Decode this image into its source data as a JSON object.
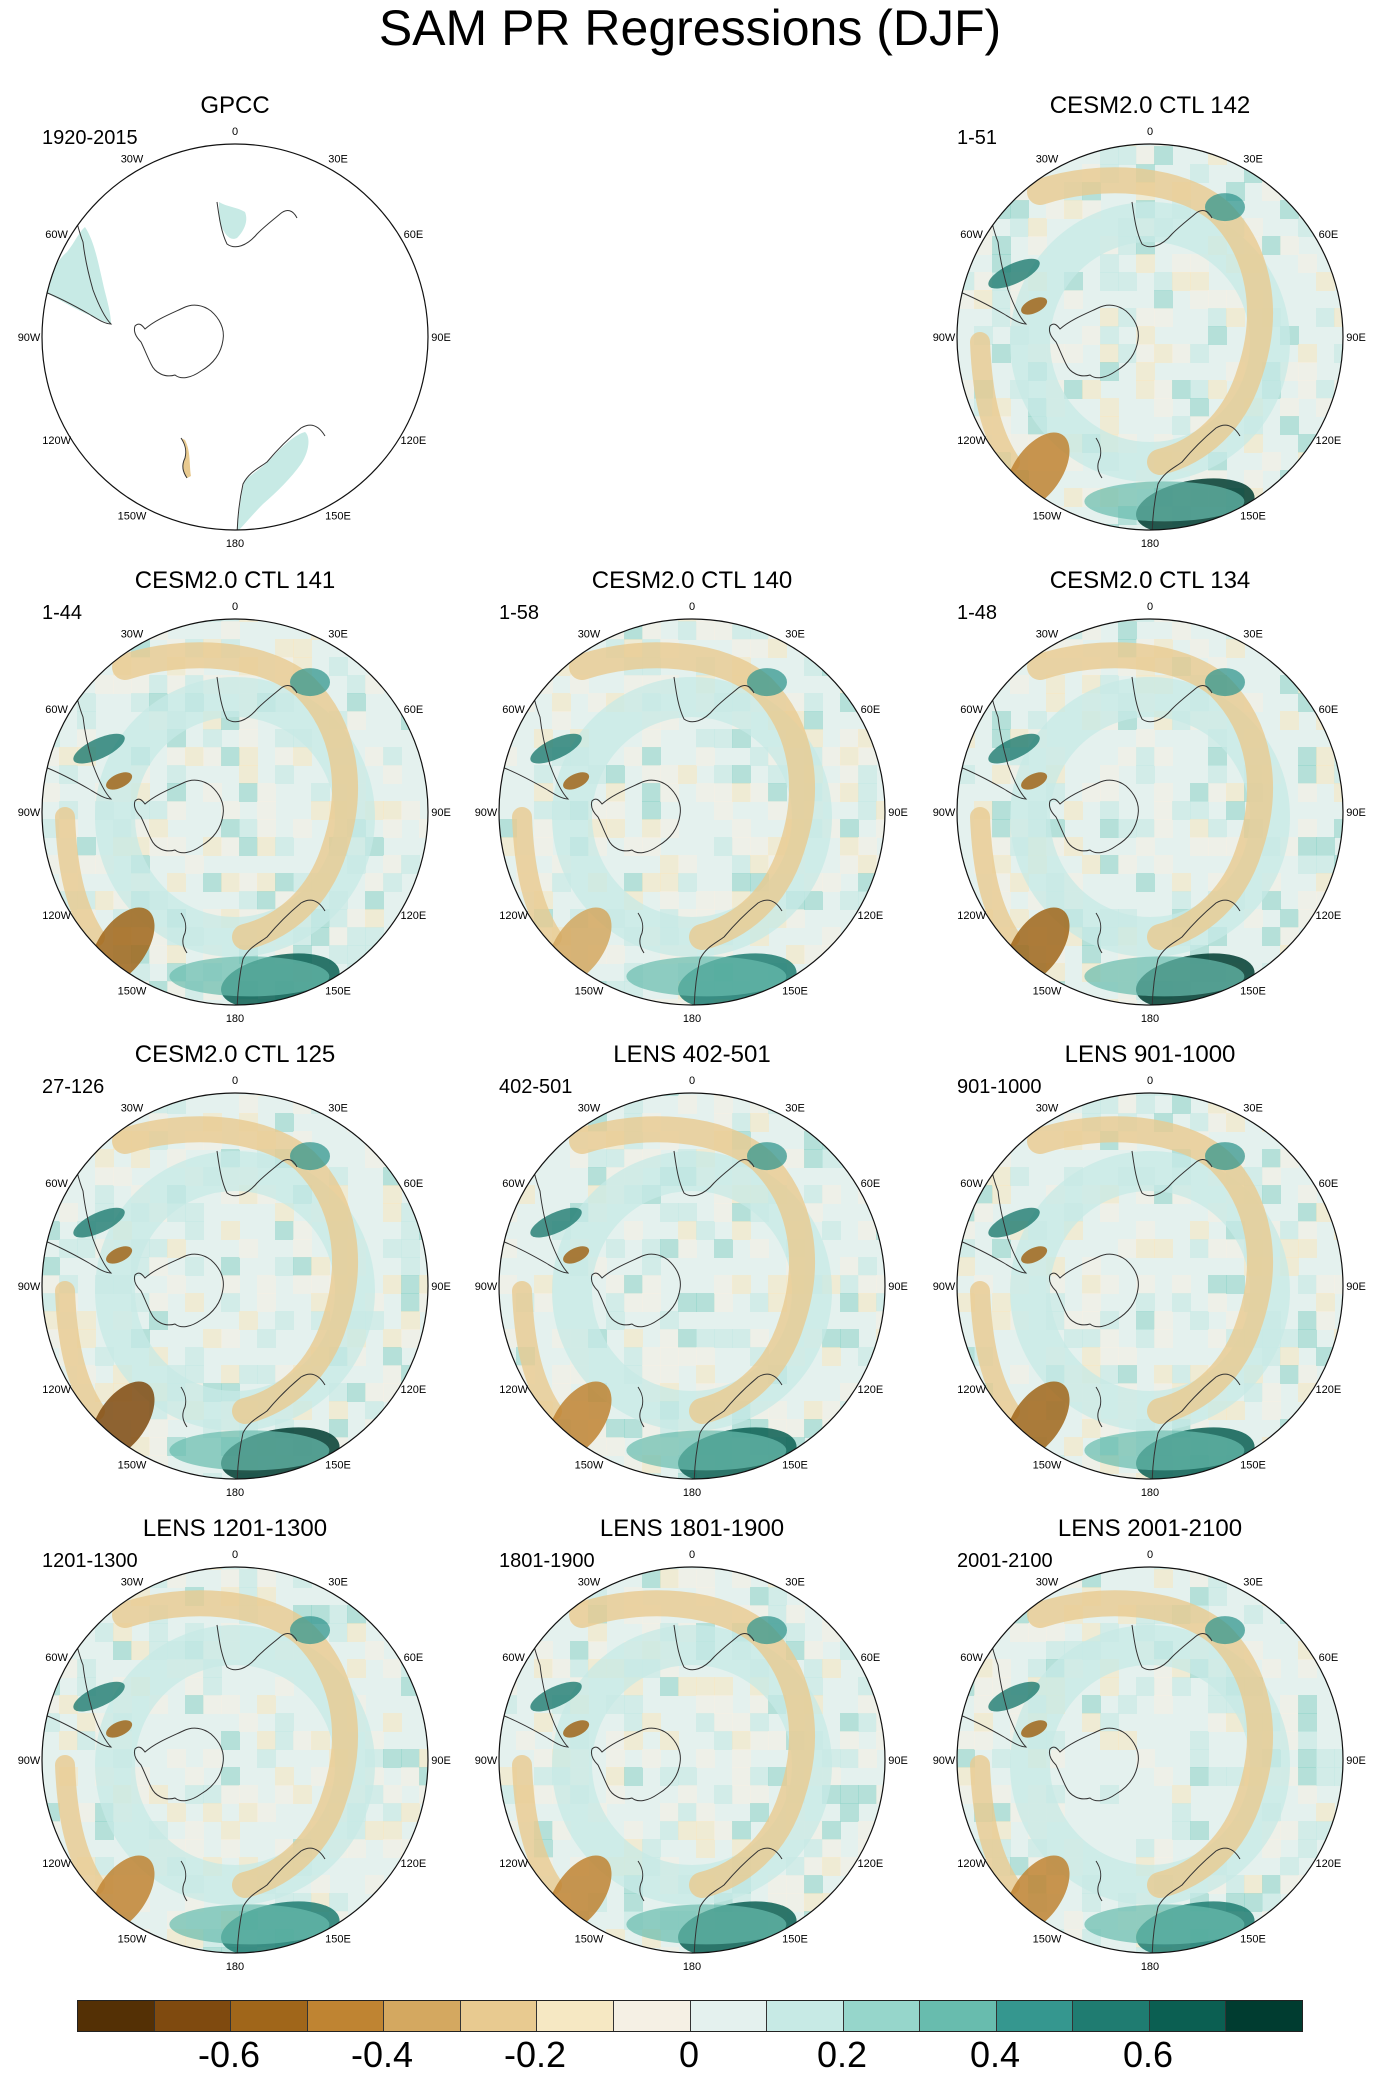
{
  "title": "SAM PR Regressions (DJF)",
  "lon_labels": [
    "0",
    "30E",
    "60E",
    "90E",
    "120E",
    "150E",
    "180",
    "150W",
    "120W",
    "90W",
    "60W",
    "30W"
  ],
  "panels": [
    {
      "title": "GPCC",
      "period": "1920-2015",
      "type": "obs"
    },
    {
      "title": "CESM2.0 CTL 142",
      "period": "1-51",
      "type": "model"
    },
    {
      "title": "CESM2.0 CTL 141",
      "period": "1-44",
      "type": "model"
    },
    {
      "title": "CESM2.0 CTL 140",
      "period": "1-58",
      "type": "model"
    },
    {
      "title": "CESM2.0 CTL 134",
      "period": "1-48",
      "type": "model"
    },
    {
      "title": "CESM2.0 CTL 125",
      "period": "27-126",
      "type": "model"
    },
    {
      "title": "LENS 402-501",
      "period": "402-501",
      "type": "model"
    },
    {
      "title": "LENS 901-1000",
      "period": "901-1000",
      "type": "model"
    },
    {
      "title": "LENS 1201-1300",
      "period": "1201-1300",
      "type": "model"
    },
    {
      "title": "LENS 1801-1900",
      "period": "1801-1900",
      "type": "model"
    },
    {
      "title": "LENS 2001-2100",
      "period": "2001-2100",
      "type": "model"
    }
  ],
  "colorbar": {
    "colors": [
      "#543005",
      "#7f4a0f",
      "#a0661a",
      "#bf8432",
      "#d4a860",
      "#e8ca90",
      "#f6e8c3",
      "#f5f0e4",
      "#e4f1ee",
      "#c7eae5",
      "#96d6cb",
      "#68bcae",
      "#35978f",
      "#1f7c71",
      "#0b5f52",
      "#003c30"
    ],
    "labels": [
      "-0.6",
      "-0.4",
      "-0.2",
      "0",
      "0.2",
      "0.4",
      "0.6"
    ]
  }
}
